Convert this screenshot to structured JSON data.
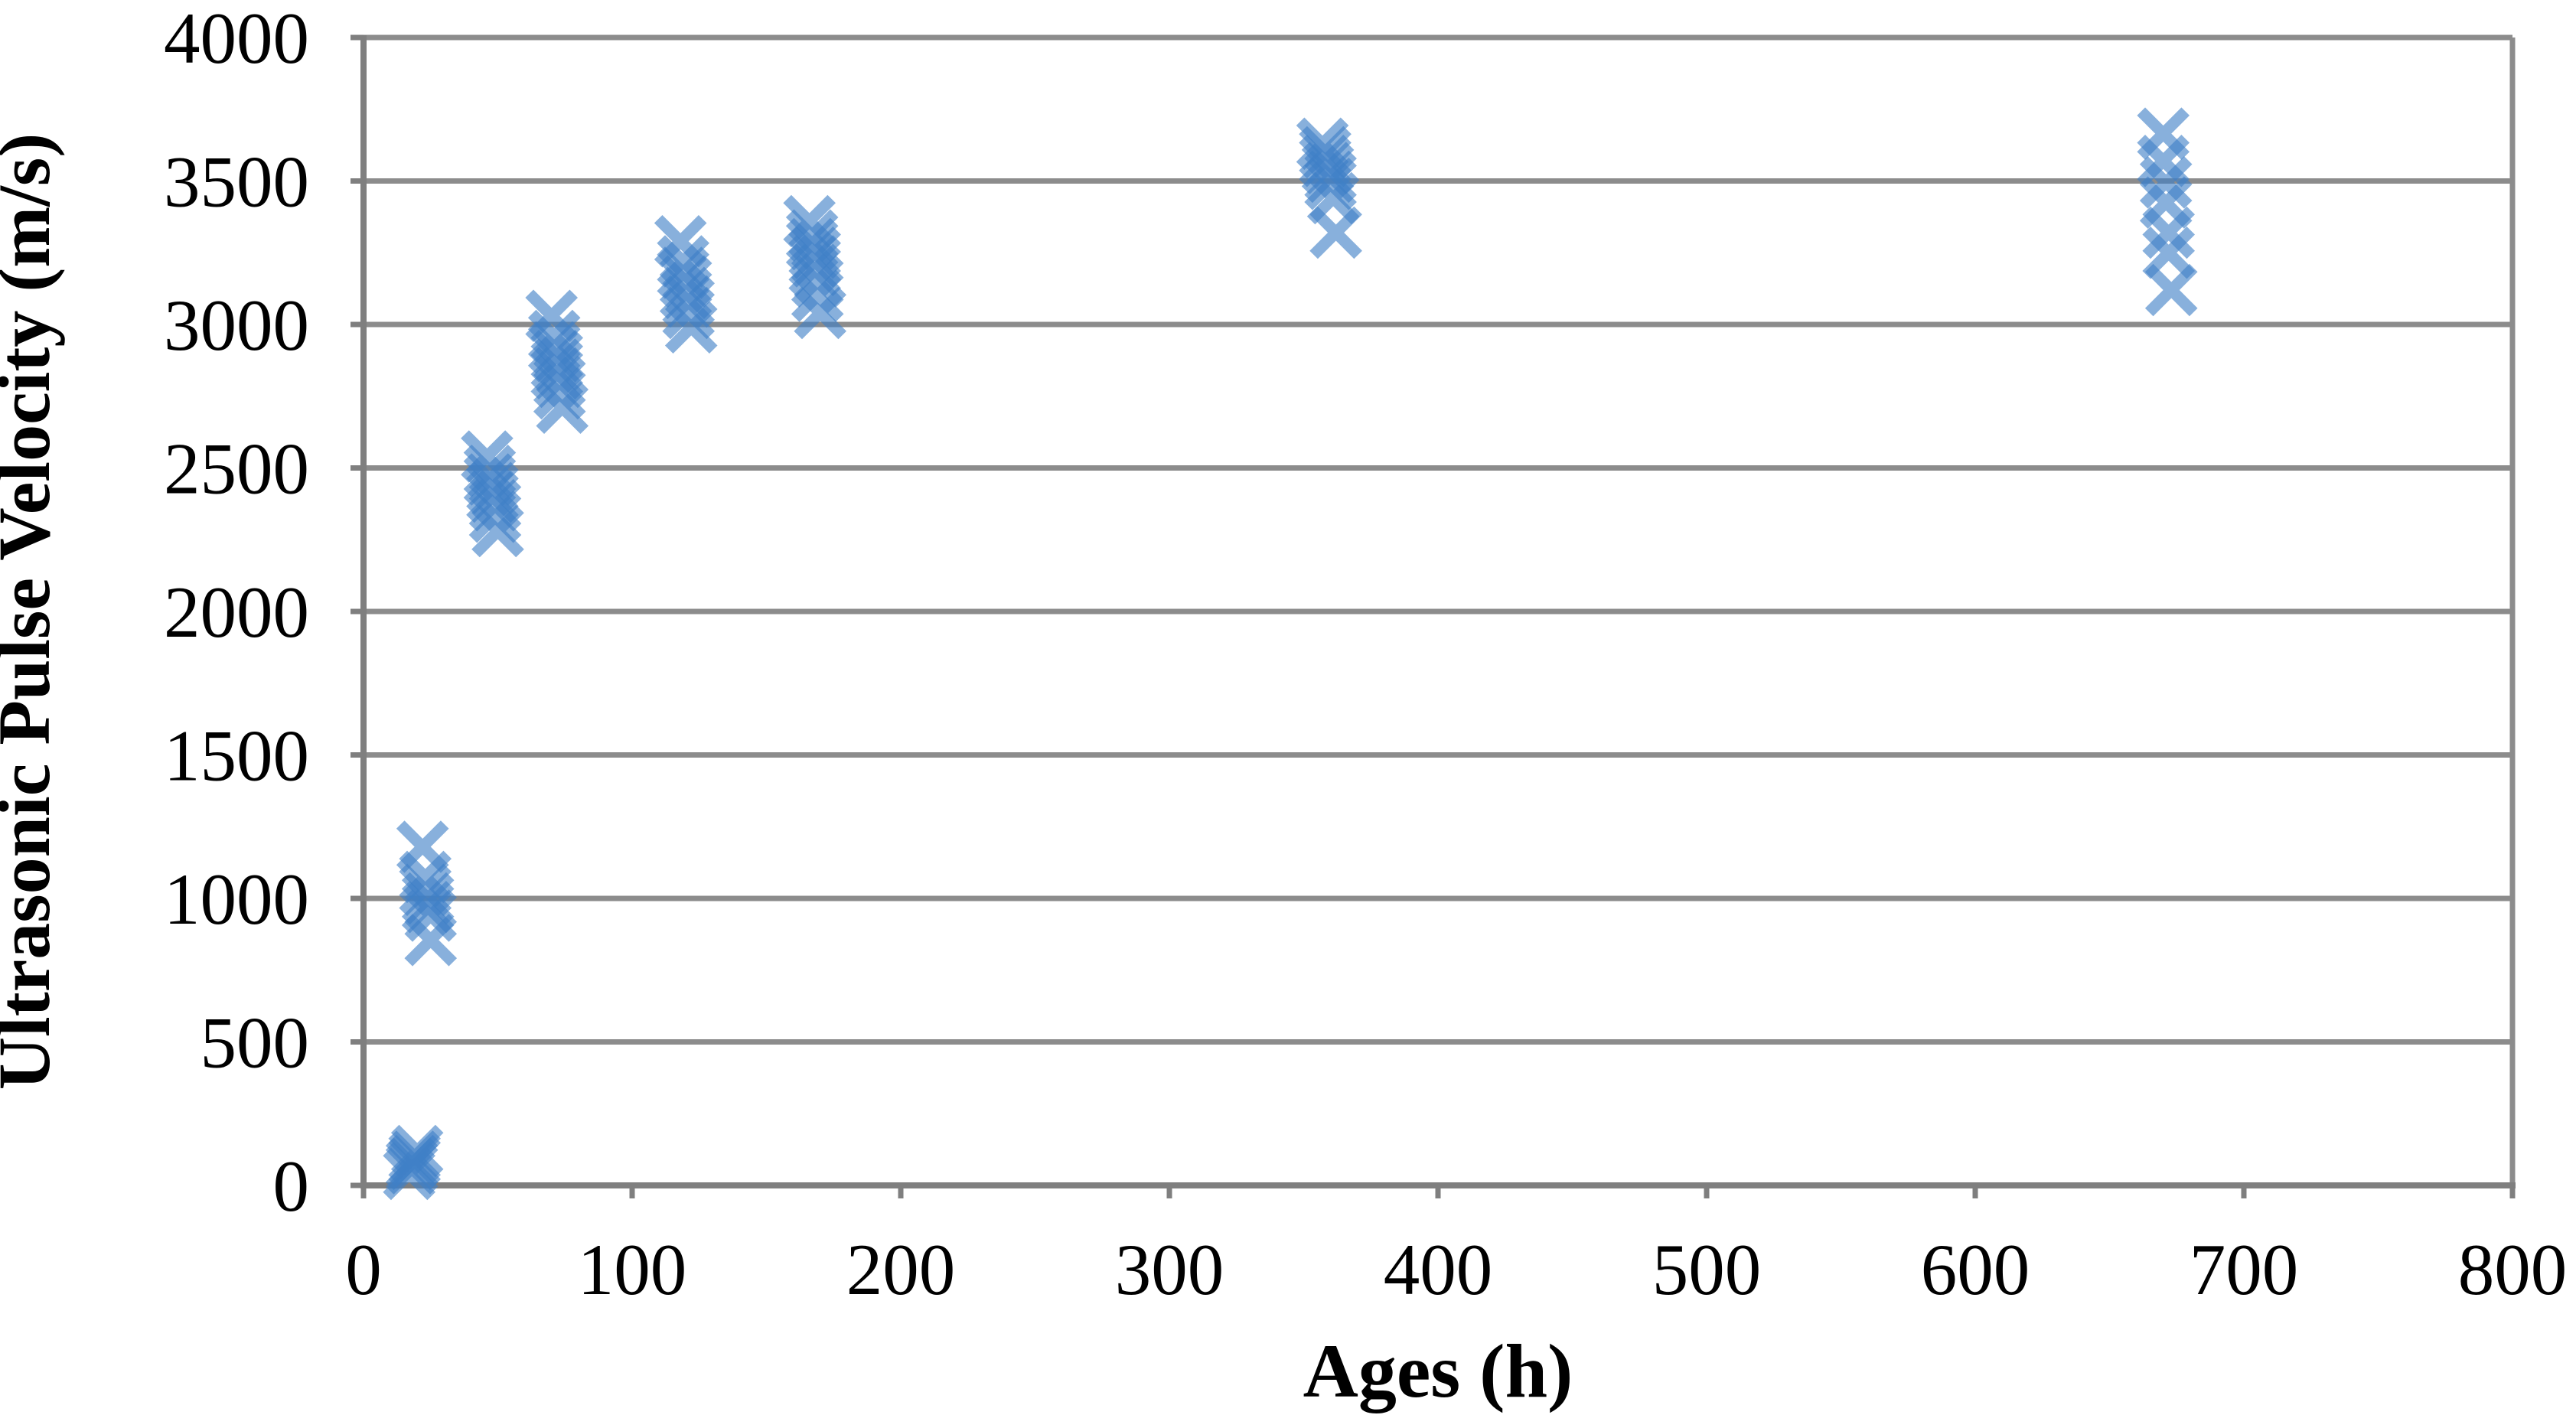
{
  "chart_data": {
    "type": "scatter",
    "title": "",
    "xlabel": "Ages (h)",
    "ylabel": "Ultrasonic Pulse Velocity (m/s)",
    "xlim": [
      0,
      800
    ],
    "ylim": [
      0,
      4000
    ],
    "x_ticks": [
      0,
      100,
      200,
      300,
      400,
      500,
      600,
      700,
      800
    ],
    "y_ticks": [
      0,
      500,
      1000,
      1500,
      2000,
      2500,
      3000,
      3500,
      4000
    ],
    "grid": "horizontal-only",
    "legend": "none",
    "gridline_color": "#8c8c8c",
    "axis_color": "#7f7f7f",
    "marker": {
      "shape": "x",
      "color": "#3f80c6",
      "opacity": 0.62,
      "size": 58,
      "stroke_width": 15
    },
    "series": [
      {
        "name": "Ultrasonic Pulse Velocity",
        "points": [
          [
            17,
            40
          ],
          [
            18,
            60
          ],
          [
            18,
            75
          ],
          [
            19,
            85
          ],
          [
            19,
            100
          ],
          [
            20,
            120
          ],
          [
            22,
            1180
          ],
          [
            23,
            1075
          ],
          [
            23,
            1030
          ],
          [
            24,
            1000
          ],
          [
            24,
            970
          ],
          [
            25,
            940
          ],
          [
            25,
            855
          ],
          [
            46,
            2540
          ],
          [
            47,
            2490
          ],
          [
            47,
            2460
          ],
          [
            48,
            2430
          ],
          [
            48,
            2400
          ],
          [
            49,
            2370
          ],
          [
            49,
            2330
          ],
          [
            50,
            2280
          ],
          [
            70,
            3030
          ],
          [
            71,
            2960
          ],
          [
            71,
            2920
          ],
          [
            72,
            2890
          ],
          [
            72,
            2860
          ],
          [
            72,
            2830
          ],
          [
            73,
            2800
          ],
          [
            73,
            2760
          ],
          [
            74,
            2710
          ],
          [
            118,
            3290
          ],
          [
            119,
            3220
          ],
          [
            119,
            3180
          ],
          [
            120,
            3150
          ],
          [
            120,
            3110
          ],
          [
            121,
            3080
          ],
          [
            121,
            3040
          ],
          [
            122,
            2990
          ],
          [
            166,
            3360
          ],
          [
            167,
            3310
          ],
          [
            167,
            3280
          ],
          [
            168,
            3250
          ],
          [
            168,
            3220
          ],
          [
            168,
            3190
          ],
          [
            169,
            3150
          ],
          [
            169,
            3100
          ],
          [
            170,
            3040
          ],
          [
            357,
            3630
          ],
          [
            358,
            3600
          ],
          [
            358,
            3570
          ],
          [
            359,
            3545
          ],
          [
            360,
            3515
          ],
          [
            360,
            3490
          ],
          [
            361,
            3440
          ],
          [
            362,
            3320
          ],
          [
            670,
            3665
          ],
          [
            670,
            3570
          ],
          [
            671,
            3495
          ],
          [
            671,
            3425
          ],
          [
            672,
            3320
          ],
          [
            672,
            3250
          ],
          [
            673,
            3120
          ]
        ]
      }
    ]
  }
}
